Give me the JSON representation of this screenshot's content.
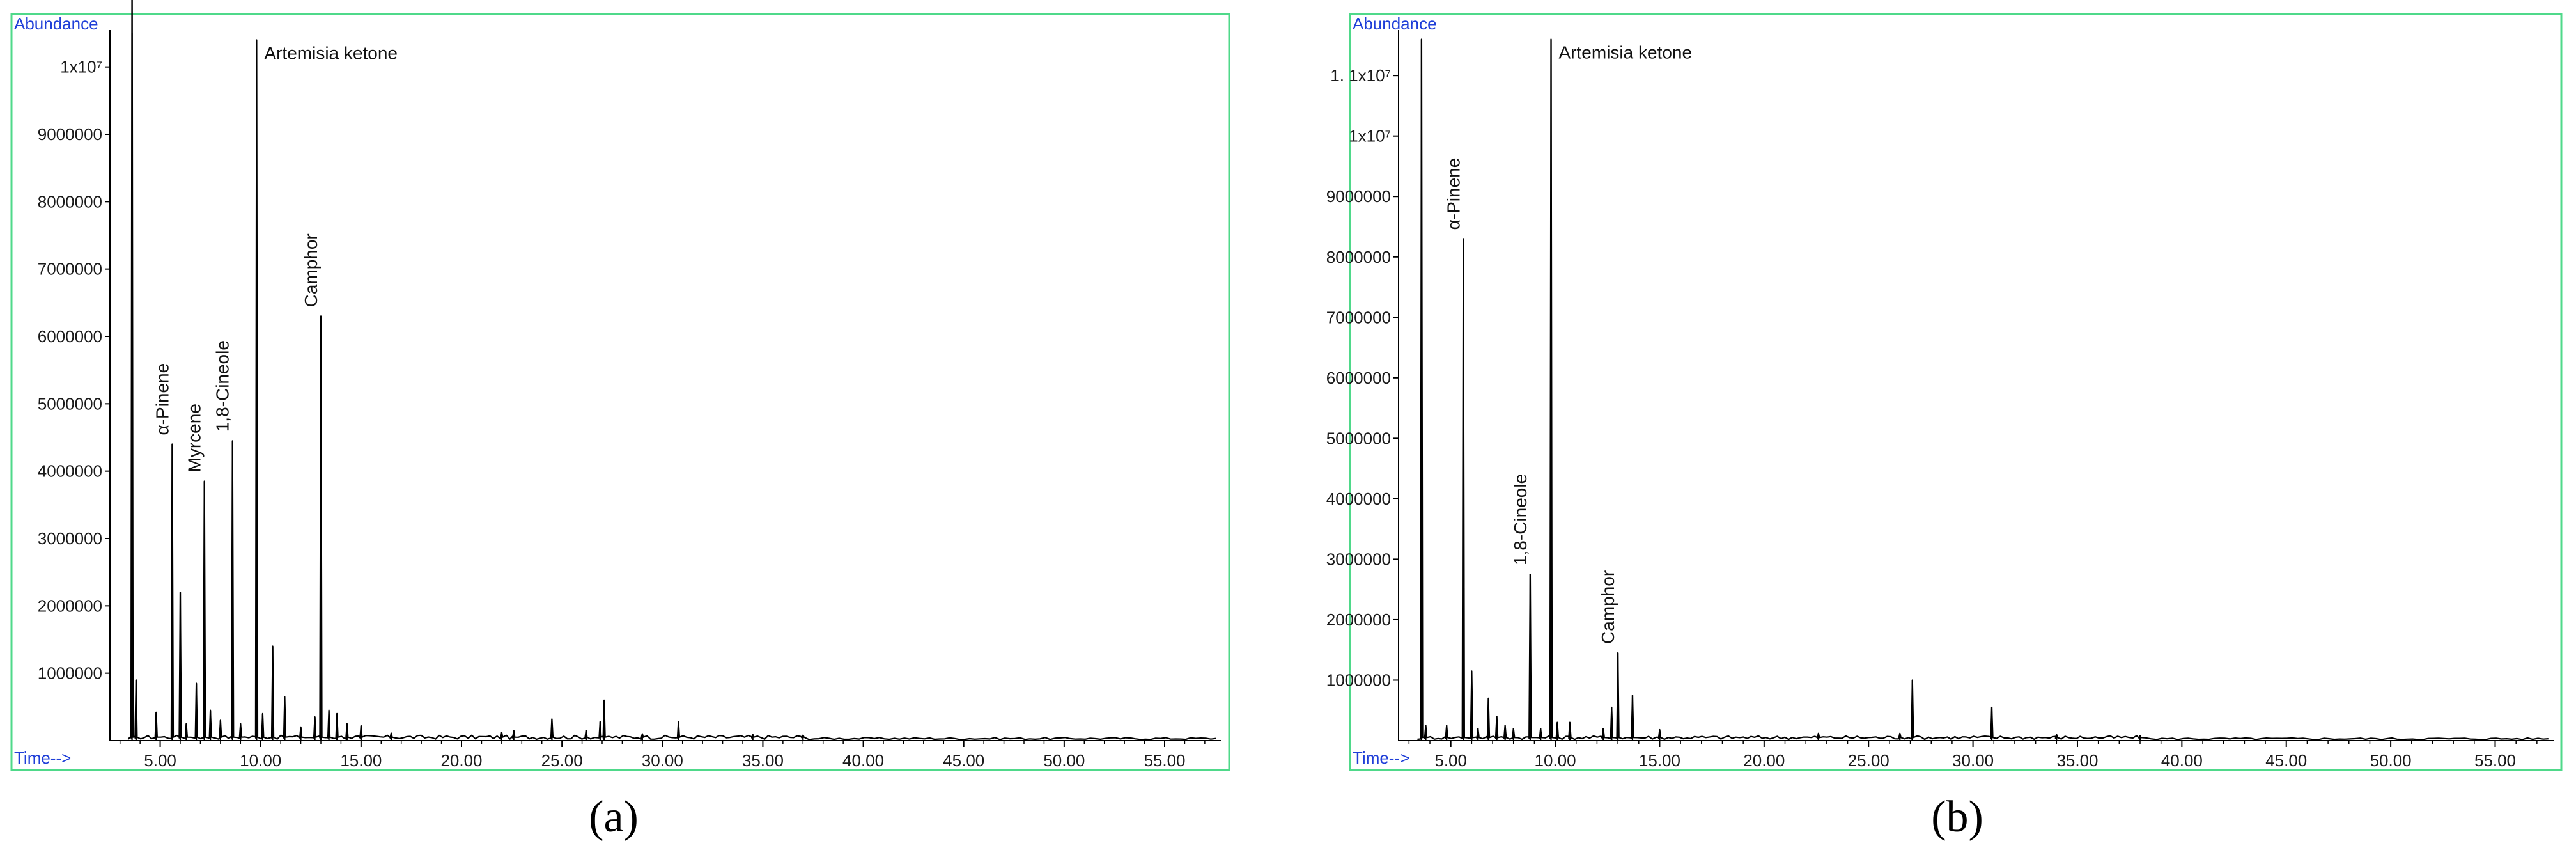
{
  "colors": {
    "frame": "#4fd98a",
    "axis_text": "#1f3fd8",
    "trace": "#000000"
  },
  "chart_data": [
    {
      "type": "line",
      "caption": "(a)",
      "ylabel": "Abundance",
      "xlabel": "Time-->",
      "xlim": [
        2.5,
        57.8
      ],
      "ylim": [
        0,
        10500000
      ],
      "x_ticks": [
        "5.00",
        "10.00",
        "15.00",
        "20.00",
        "25.00",
        "30.00",
        "35.00",
        "40.00",
        "45.00",
        "50.00",
        "55.00"
      ],
      "x_tick_values": [
        5,
        10,
        15,
        20,
        25,
        30,
        35,
        40,
        45,
        50,
        55
      ],
      "y_ticks": [
        "1000000",
        "2000000",
        "3000000",
        "4000000",
        "5000000",
        "6000000",
        "7000000",
        "8000000",
        "9000000"
      ],
      "y_tick_values": [
        1000000,
        2000000,
        3000000,
        4000000,
        5000000,
        6000000,
        7000000,
        8000000,
        9000000
      ],
      "y_top_label": "1x10⁷",
      "y_top_value": 10000000,
      "peaks": [
        {
          "x": 3.6,
          "y": 12000000
        },
        {
          "x": 3.8,
          "y": 900000
        },
        {
          "x": 4.8,
          "y": 420000
        },
        {
          "x": 5.6,
          "y": 4400000
        },
        {
          "x": 6.0,
          "y": 2200000
        },
        {
          "x": 6.3,
          "y": 250000
        },
        {
          "x": 6.8,
          "y": 850000
        },
        {
          "x": 7.2,
          "y": 3850000
        },
        {
          "x": 7.5,
          "y": 450000
        },
        {
          "x": 8.0,
          "y": 300000
        },
        {
          "x": 8.6,
          "y": 4450000
        },
        {
          "x": 9.0,
          "y": 250000
        },
        {
          "x": 9.8,
          "y": 10400000
        },
        {
          "x": 10.1,
          "y": 400000
        },
        {
          "x": 10.6,
          "y": 1400000
        },
        {
          "x": 11.2,
          "y": 650000
        },
        {
          "x": 12.0,
          "y": 200000
        },
        {
          "x": 12.7,
          "y": 350000
        },
        {
          "x": 13.0,
          "y": 6300000
        },
        {
          "x": 13.4,
          "y": 450000
        },
        {
          "x": 13.8,
          "y": 400000
        },
        {
          "x": 14.3,
          "y": 250000
        },
        {
          "x": 15.0,
          "y": 220000
        },
        {
          "x": 16.5,
          "y": 110000
        },
        {
          "x": 22.0,
          "y": 120000
        },
        {
          "x": 22.6,
          "y": 150000
        },
        {
          "x": 24.5,
          "y": 320000
        },
        {
          "x": 26.2,
          "y": 150000
        },
        {
          "x": 26.9,
          "y": 280000
        },
        {
          "x": 27.1,
          "y": 600000
        },
        {
          "x": 29.0,
          "y": 100000
        },
        {
          "x": 30.8,
          "y": 280000
        },
        {
          "x": 34.5,
          "y": 90000
        },
        {
          "x": 37.0,
          "y": 80000
        }
      ],
      "annotations": [
        {
          "text": "α-Pinene",
          "x": 5.6,
          "y": 4400000,
          "orient": "vertical"
        },
        {
          "text": "Myrcene",
          "x": 7.2,
          "y": 3850000,
          "orient": "vertical"
        },
        {
          "text": "1,8-Cineole",
          "x": 8.6,
          "y": 4450000,
          "orient": "vertical"
        },
        {
          "text": "Artemisia ketone",
          "x": 9.8,
          "y": 10400000,
          "orient": "horizontal"
        },
        {
          "text": "Camphor",
          "x": 13.0,
          "y": 6300000,
          "orient": "vertical"
        }
      ]
    },
    {
      "type": "line",
      "caption": "(b)",
      "ylabel": "Abundance",
      "xlabel": "Time-->",
      "xlim": [
        2.5,
        57.8
      ],
      "ylim": [
        0,
        11700000
      ],
      "x_ticks": [
        "5.00",
        "10.00",
        "15.00",
        "20.00",
        "25.00",
        "30.00",
        "35.00",
        "40.00",
        "45.00",
        "50.00",
        "55.00"
      ],
      "x_tick_values": [
        5,
        10,
        15,
        20,
        25,
        30,
        35,
        40,
        45,
        50,
        55
      ],
      "y_ticks": [
        "1000000",
        "2000000",
        "3000000",
        "4000000",
        "5000000",
        "6000000",
        "7000000",
        "8000000",
        "9000000"
      ],
      "y_tick_values": [
        1000000,
        2000000,
        3000000,
        4000000,
        5000000,
        6000000,
        7000000,
        8000000,
        9000000
      ],
      "y_top_labels": [
        "1x10⁷",
        "1. 1x10⁷"
      ],
      "y_top_values": [
        10000000,
        11000000
      ],
      "peaks": [
        {
          "x": 3.6,
          "y": 11600000
        },
        {
          "x": 3.8,
          "y": 250000
        },
        {
          "x": 4.8,
          "y": 250000
        },
        {
          "x": 5.6,
          "y": 8300000
        },
        {
          "x": 6.0,
          "y": 1150000
        },
        {
          "x": 6.3,
          "y": 200000
        },
        {
          "x": 6.8,
          "y": 700000
        },
        {
          "x": 7.2,
          "y": 400000
        },
        {
          "x": 7.6,
          "y": 250000
        },
        {
          "x": 8.0,
          "y": 200000
        },
        {
          "x": 8.8,
          "y": 2750000
        },
        {
          "x": 9.3,
          "y": 200000
        },
        {
          "x": 9.8,
          "y": 11600000
        },
        {
          "x": 10.1,
          "y": 300000
        },
        {
          "x": 10.7,
          "y": 300000
        },
        {
          "x": 12.3,
          "y": 200000
        },
        {
          "x": 12.7,
          "y": 550000
        },
        {
          "x": 13.0,
          "y": 1450000
        },
        {
          "x": 13.7,
          "y": 750000
        },
        {
          "x": 15.0,
          "y": 180000
        },
        {
          "x": 22.6,
          "y": 120000
        },
        {
          "x": 26.5,
          "y": 120000
        },
        {
          "x": 27.1,
          "y": 1000000
        },
        {
          "x": 30.9,
          "y": 550000
        },
        {
          "x": 34.0,
          "y": 100000
        },
        {
          "x": 38.0,
          "y": 80000
        }
      ],
      "annotations": [
        {
          "text": "α-Pinene",
          "x": 5.6,
          "y": 8300000,
          "orient": "vertical"
        },
        {
          "text": "1,8-Cineole",
          "x": 8.8,
          "y": 2750000,
          "orient": "vertical"
        },
        {
          "text": "Artemisia ketone",
          "x": 9.8,
          "y": 11600000,
          "orient": "horizontal"
        },
        {
          "text": "Camphor",
          "x": 13.0,
          "y": 1450000,
          "orient": "vertical"
        }
      ]
    }
  ]
}
